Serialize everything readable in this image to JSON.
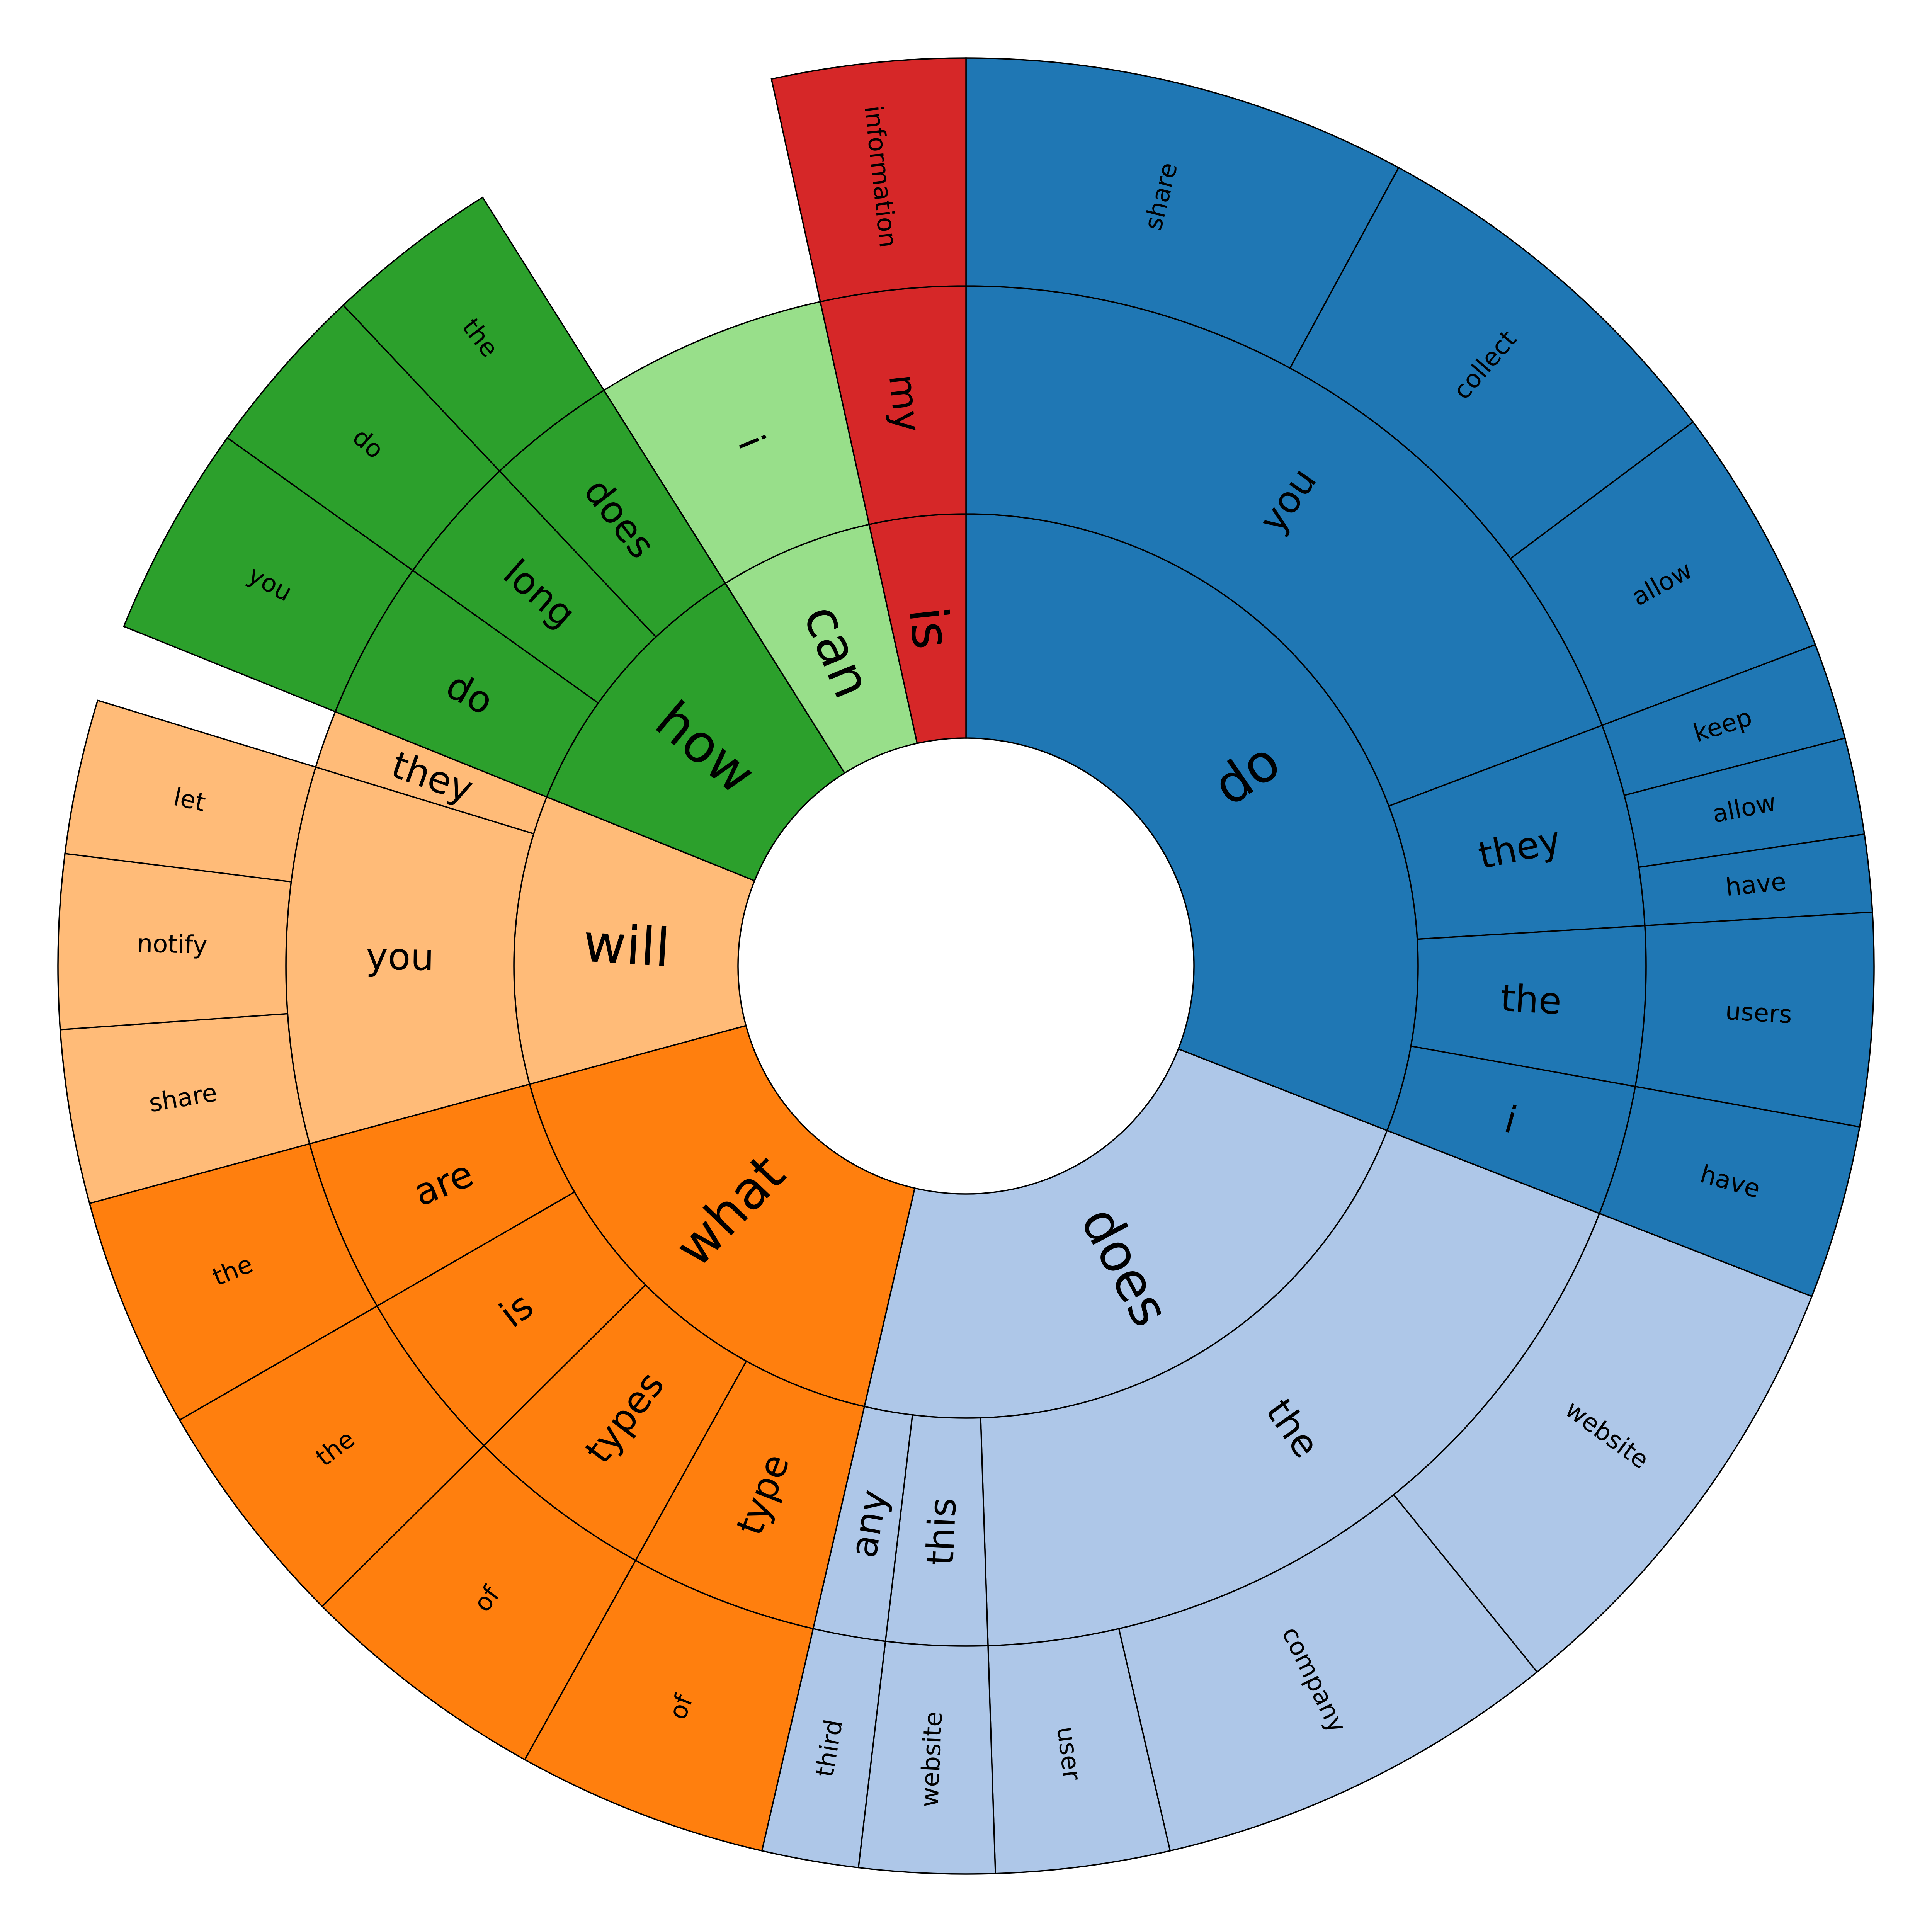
{
  "chart_data": {
    "type": "sunburst",
    "title": "",
    "root": [
      {
        "label": "do",
        "value": 90,
        "color": "#1f77b4",
        "children": [
          {
            "label": "you",
            "value": 56,
            "children": [
              {
                "label": "share",
                "value": 23
              },
              {
                "label": "collect",
                "value": 20
              },
              {
                "label": "allow",
                "value": 13
              }
            ]
          },
          {
            "label": "they",
            "value": 14,
            "children": [
              {
                "label": "keep",
                "value": 5
              },
              {
                "label": "allow",
                "value": 5
              },
              {
                "label": "have",
                "value": 4
              }
            ]
          },
          {
            "label": "the",
            "value": 11,
            "children": [
              {
                "label": "users",
                "value": 11
              }
            ]
          },
          {
            "label": "i",
            "value": 9,
            "children": [
              {
                "label": "have",
                "value": 9
              }
            ]
          }
        ]
      },
      {
        "label": "does",
        "value": 66,
        "color": "#aec7e8",
        "children": [
          {
            "label": "the",
            "value": 54,
            "children": [
              {
                "label": "website",
                "value": 24
              },
              {
                "label": "company",
                "value": 21
              },
              {
                "label": "user",
                "value": 9
              }
            ]
          },
          {
            "label": "this",
            "value": 7,
            "children": [
              {
                "label": "website",
                "value": 7
              }
            ]
          },
          {
            "label": "any",
            "value": 5,
            "children": [
              {
                "label": "third",
                "value": 5
              }
            ]
          }
        ]
      },
      {
        "label": "what",
        "value": 50,
        "color": "#ff7f0e",
        "children": [
          {
            "label": "type",
            "value": 13,
            "children": [
              {
                "label": "of",
                "value": 13
              }
            ]
          },
          {
            "label": "types",
            "value": 13,
            "children": [
              {
                "label": "of",
                "value": 13
              }
            ]
          },
          {
            "label": "is",
            "value": 12,
            "children": [
              {
                "label": "the",
                "value": 12
              }
            ]
          },
          {
            "label": "are",
            "value": 12,
            "children": [
              {
                "label": "the",
                "value": 12
              }
            ]
          }
        ]
      },
      {
        "label": "will",
        "value": 30,
        "color": "#ffbb78",
        "children": [
          {
            "label": "you",
            "value": 26,
            "children": [
              {
                "label": "share",
                "value": 9
              },
              {
                "label": "notify",
                "value": 9
              },
              {
                "label": "let",
                "value": 8
              }
            ]
          },
          {
            "label": "they",
            "value": 4,
            "children": []
          }
        ]
      },
      {
        "label": "how",
        "value": 29,
        "color": "#2ca02c",
        "children": [
          {
            "label": "do",
            "value": 11,
            "children": [
              {
                "label": "you",
                "value": 11
              }
            ]
          },
          {
            "label": "long",
            "value": 9,
            "children": [
              {
                "label": "do",
                "value": 9
              }
            ]
          },
          {
            "label": "does",
            "value": 9,
            "children": [
              {
                "label": "the",
                "value": 9
              }
            ]
          }
        ]
      },
      {
        "label": "can",
        "value": 16,
        "color": "#98df8a",
        "children": [
          {
            "label": "i",
            "value": 16,
            "children": []
          }
        ]
      },
      {
        "label": "is",
        "value": 10,
        "color": "#d62728",
        "children": [
          {
            "label": "my",
            "value": 10,
            "children": [
              {
                "label": "information",
                "value": 10
              }
            ]
          }
        ]
      }
    ]
  }
}
